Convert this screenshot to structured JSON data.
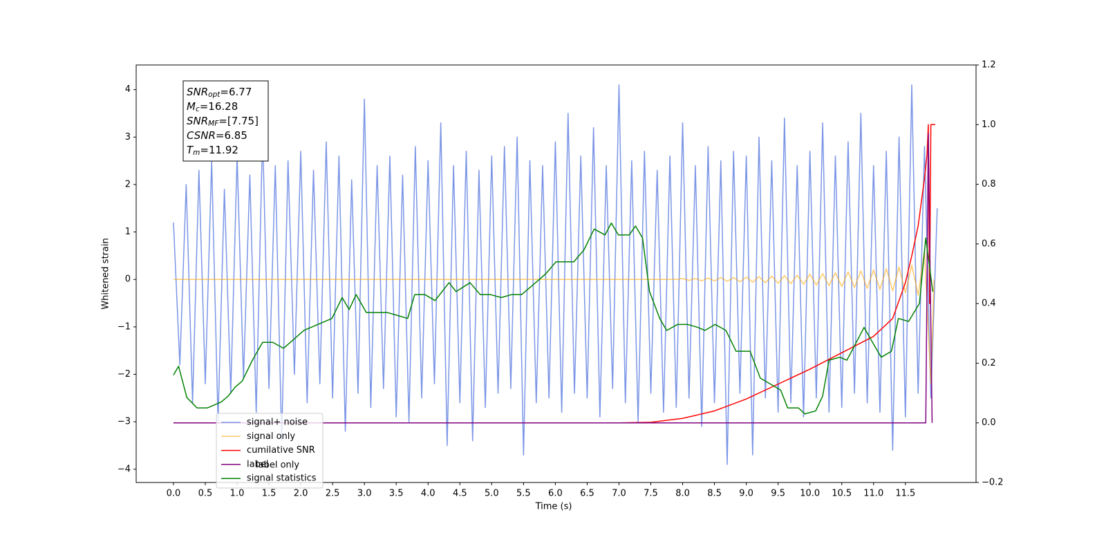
{
  "chart_data": {
    "type": "line",
    "xlabel": "Time (s)",
    "ylabel": "Whitened strain",
    "xlim": [
      -0.586,
      12.61
    ],
    "ylim": [
      -4.28,
      4.52
    ],
    "y2lim": [
      -0.2,
      1.2
    ],
    "xticks": [
      {
        "value": 0,
        "label": "0.0"
      },
      0.5,
      {
        "value": 1,
        "label": "1.0"
      },
      1.5,
      {
        "value": 2,
        "label": "2.0"
      },
      2.5,
      {
        "value": 3,
        "label": "3.0"
      },
      3.5,
      {
        "value": 4,
        "label": "4.0"
      },
      4.5,
      {
        "value": 5,
        "label": "5.0"
      },
      5.5,
      {
        "value": 6,
        "label": "6.0"
      },
      6.5,
      {
        "value": 7,
        "label": "7.0"
      },
      7.5,
      {
        "value": 8,
        "label": "8.0"
      },
      8.5,
      {
        "value": 9,
        "label": "9.0"
      },
      9.5,
      {
        "value": 10,
        "label": "10.0"
      },
      10.5,
      {
        "value": 11,
        "label": "11.0"
      },
      11.5
    ],
    "yticks": [
      {
        "value": -4,
        "label": "−4"
      },
      {
        "value": -3,
        "label": "−3"
      },
      {
        "value": -2,
        "label": "−2"
      },
      {
        "value": -1,
        "label": "−1"
      },
      0,
      1,
      2,
      3,
      4
    ],
    "y2ticks": [
      {
        "value": -0.2,
        "label": "−0.2"
      },
      {
        "value": 0,
        "label": "0.0"
      },
      0.2,
      0.4,
      0.6,
      0.8,
      {
        "value": 1,
        "label": "1.0"
      },
      1.2
    ],
    "legend": "lower left",
    "legend_behind": "label only",
    "annotation": [
      {
        "symbol": "SNR",
        "subscript": "opt",
        "text": "=6.77"
      },
      {
        "symbol": "M",
        "subscript": "c",
        "text": "=16.28"
      },
      {
        "symbol": "SNR",
        "subscript": "MF",
        "text": "=[7.75]"
      },
      {
        "symbol": "CSNR",
        "text": "=6.85"
      },
      {
        "symbol": "T",
        "subscript": "m",
        "text": "=11.92"
      }
    ],
    "series": [
      {
        "name": "signal+ noise",
        "color": "#7b95e6",
        "opacity": 1,
        "x": [
          0,
          0.1,
          0.2,
          0.3,
          0.4,
          0.5,
          0.6,
          0.7,
          0.8,
          0.9,
          1,
          1.1,
          1.2,
          1.3,
          1.4,
          1.5,
          1.6,
          1.7,
          1.8,
          1.9,
          2,
          2.1,
          2.2,
          2.3,
          2.4,
          2.5,
          2.6,
          2.7,
          2.8,
          2.9,
          3,
          3.1,
          3.2,
          3.3,
          3.4,
          3.5,
          3.6,
          3.7,
          3.8,
          3.9,
          4,
          4.1,
          4.2,
          4.3,
          4.4,
          4.5,
          4.6,
          4.7,
          4.8,
          4.9,
          5,
          5.1,
          5.2,
          5.3,
          5.4,
          5.5,
          5.6,
          5.7,
          5.8,
          5.9,
          6,
          6.1,
          6.2,
          6.3,
          6.4,
          6.5,
          6.6,
          6.7,
          6.8,
          6.9,
          7,
          7.1,
          7.2,
          7.3,
          7.4,
          7.5,
          7.6,
          7.7,
          7.8,
          7.9,
          8,
          8.1,
          8.2,
          8.3,
          8.4,
          8.5,
          8.6,
          8.7,
          8.8,
          8.9,
          9,
          9.1,
          9.2,
          9.3,
          9.4,
          9.5,
          9.6,
          9.7,
          9.8,
          9.9,
          10,
          10.1,
          10.2,
          10.3,
          10.4,
          10.5,
          10.6,
          10.7,
          10.8,
          10.9,
          11,
          11.1,
          11.2,
          11.3,
          11.4,
          11.5,
          11.6,
          11.7,
          11.8,
          11.9,
          12
        ],
        "values": [
          1.2,
          -1.8,
          2.0,
          -2.6,
          2.3,
          -2.2,
          2.5,
          -3.0,
          1.9,
          -2.4,
          2.6,
          -2.1,
          2.2,
          -2.8,
          3.1,
          -2.3,
          2.4,
          -3.4,
          2.5,
          -2.0,
          2.7,
          -2.6,
          2.3,
          -2.2,
          2.9,
          -2.5,
          2.6,
          -3.2,
          2.1,
          -2.4,
          3.8,
          -2.7,
          2.4,
          -2.3,
          2.6,
          -2.9,
          2.2,
          -3.0,
          2.8,
          -2.5,
          2.5,
          -2.2,
          3.3,
          -3.5,
          2.4,
          -2.6,
          2.7,
          -3.4,
          2.3,
          -2.7,
          2.6,
          -2.4,
          2.8,
          -2.3,
          3.0,
          -3.7,
          2.5,
          -2.6,
          2.4,
          -2.5,
          2.9,
          -2.8,
          3.5,
          -2.4,
          2.6,
          -2.5,
          3.2,
          -2.9,
          2.4,
          -2.3,
          4.1,
          -2.6,
          2.5,
          -3.0,
          2.7,
          -2.4,
          2.3,
          -2.8,
          2.6,
          -2.7,
          3.3,
          -2.5,
          2.4,
          -3.1,
          2.8,
          -2.6,
          2.5,
          -3.9,
          2.7,
          -2.4,
          2.6,
          -3.7,
          3.0,
          -2.5,
          2.5,
          -2.8,
          3.4,
          -2.6,
          2.4,
          -2.9,
          2.7,
          -2.5,
          3.3,
          -2.8,
          2.6,
          -2.7,
          2.9,
          -2.4,
          3.5,
          -2.6,
          2.4,
          -2.8,
          2.7,
          -3.6,
          3.0,
          -2.9,
          4.1,
          -2.4,
          2.8,
          -2.5,
          1.5
        ]
      },
      {
        "name": "signal only",
        "color": "#ffa500",
        "opacity": 0.6,
        "x": [
          0,
          7.9,
          8,
          8.1,
          8.2,
          8.3,
          8.4,
          8.5,
          8.6,
          8.7,
          8.8,
          8.9,
          9,
          9.1,
          9.2,
          9.3,
          9.4,
          9.5,
          9.6,
          9.7,
          9.8,
          9.9,
          10,
          10.1,
          10.2,
          10.3,
          10.4,
          10.5,
          10.6,
          10.7,
          10.8,
          10.9,
          11,
          11.1,
          11.2,
          11.3,
          11.4,
          11.5,
          11.6,
          11.7,
          11.8,
          11.9,
          11.95
        ],
        "values": [
          0,
          0,
          0.02,
          -0.02,
          0.02,
          -0.03,
          0.03,
          -0.03,
          0.04,
          -0.04,
          0.04,
          -0.05,
          0.05,
          -0.06,
          0.06,
          -0.07,
          0.07,
          -0.08,
          0.08,
          -0.09,
          0.09,
          -0.1,
          0.11,
          -0.12,
          0.12,
          -0.13,
          0.14,
          -0.15,
          0.16,
          -0.17,
          0.18,
          -0.19,
          0.2,
          -0.21,
          0.23,
          -0.24,
          0.26,
          -0.28,
          0.3,
          -0.33,
          0.6,
          -2.2,
          0
        ]
      },
      {
        "name": "cumilative SNR",
        "color": "#ff0000",
        "opacity": 1,
        "axis": "y2",
        "x": [
          0,
          7,
          7.5,
          8,
          8.5,
          9,
          9.5,
          10,
          10.5,
          11,
          11.3,
          11.5,
          11.6,
          11.7,
          11.8,
          11.84,
          11.86,
          11.88,
          11.9,
          11.97
        ],
        "values": [
          0,
          0,
          0.002,
          0.015,
          0.04,
          0.08,
          0.13,
          0.18,
          0.235,
          0.29,
          0.35,
          0.47,
          0.56,
          0.66,
          0.82,
          0.9,
          1.0,
          0.4,
          1.0,
          1.0
        ]
      },
      {
        "name": "label",
        "color": "#800080",
        "opacity": 1,
        "axis": "y2",
        "x": [
          0,
          11.82,
          11.86,
          11.92
        ],
        "values": [
          0,
          0,
          0.97,
          0
        ]
      },
      {
        "name": "signal statistics",
        "color": "#008000",
        "opacity": 1,
        "axis": "y2",
        "x": [
          0,
          0.08,
          0.21,
          0.37,
          0.53,
          0.75,
          0.86,
          0.97,
          1.08,
          1.24,
          1.4,
          1.56,
          1.73,
          1.89,
          2.05,
          2.27,
          2.49,
          2.65,
          2.76,
          2.87,
          3.03,
          3.19,
          3.36,
          3.52,
          3.68,
          3.79,
          3.95,
          4.11,
          4.33,
          4.44,
          4.66,
          4.82,
          4.98,
          5.15,
          5.31,
          5.47,
          5.69,
          5.85,
          6.01,
          6.12,
          6.29,
          6.45,
          6.61,
          6.78,
          6.88,
          6.99,
          7.16,
          7.26,
          7.37,
          7.48,
          7.64,
          7.75,
          7.92,
          8.08,
          8.24,
          8.35,
          8.51,
          8.68,
          8.84,
          9.06,
          9.22,
          9.38,
          9.54,
          9.65,
          9.82,
          9.92,
          10.09,
          10.2,
          10.3,
          10.47,
          10.58,
          10.68,
          10.85,
          11.01,
          11.12,
          11.28,
          11.39,
          11.55,
          11.72,
          11.82,
          11.93
        ],
        "values": [
          0.16,
          0.19,
          0.085,
          0.05,
          0.05,
          0.07,
          0.09,
          0.12,
          0.14,
          0.21,
          0.27,
          0.27,
          0.25,
          0.28,
          0.31,
          0.33,
          0.35,
          0.42,
          0.38,
          0.43,
          0.37,
          0.37,
          0.37,
          0.36,
          0.35,
          0.43,
          0.43,
          0.41,
          0.47,
          0.44,
          0.47,
          0.43,
          0.43,
          0.42,
          0.43,
          0.43,
          0.47,
          0.5,
          0.54,
          0.54,
          0.54,
          0.58,
          0.65,
          0.63,
          0.67,
          0.63,
          0.63,
          0.66,
          0.62,
          0.44,
          0.35,
          0.31,
          0.33,
          0.33,
          0.32,
          0.31,
          0.33,
          0.31,
          0.24,
          0.24,
          0.15,
          0.13,
          0.11,
          0.05,
          0.05,
          0.03,
          0.04,
          0.09,
          0.21,
          0.22,
          0.21,
          0.25,
          0.32,
          0.26,
          0.22,
          0.24,
          0.35,
          0.34,
          0.4,
          0.62,
          0.44
        ]
      }
    ]
  }
}
